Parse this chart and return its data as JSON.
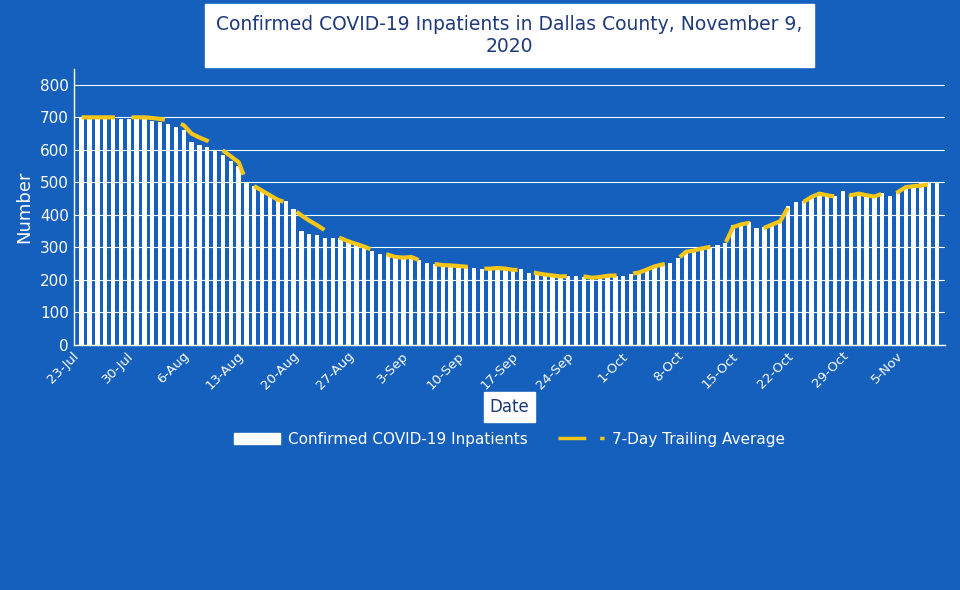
{
  "title": "Confirmed COVID-19 Inpatients in Dallas County, November 9,\n2020",
  "xlabel": "Date",
  "ylabel": "Number",
  "background_color": "#1560BD",
  "bar_color": "white",
  "line_color": "#F5C518",
  "title_color": "#1F3A7A",
  "ylim": [
    0,
    850
  ],
  "yticks": [
    0,
    100,
    200,
    300,
    400,
    500,
    600,
    700,
    800
  ],
  "bar_values": [
    700,
    695,
    700,
    695,
    700,
    695,
    695,
    700,
    695,
    690,
    685,
    680,
    670,
    660,
    625,
    615,
    610,
    595,
    585,
    565,
    550,
    500,
    488,
    475,
    462,
    448,
    442,
    418,
    350,
    342,
    338,
    328,
    328,
    328,
    318,
    308,
    298,
    288,
    278,
    275,
    268,
    268,
    272,
    262,
    252,
    248,
    242,
    242,
    242,
    238,
    236,
    232,
    232,
    238,
    232,
    228,
    232,
    222,
    218,
    212,
    212,
    208,
    212,
    212,
    208,
    202,
    208,
    212,
    212,
    212,
    218,
    222,
    232,
    242,
    248,
    252,
    268,
    288,
    292,
    298,
    302,
    308,
    312,
    368,
    372,
    378,
    358,
    362,
    372,
    382,
    428,
    438,
    442,
    458,
    468,
    462,
    458,
    472,
    462,
    468,
    462,
    458,
    468,
    458,
    472,
    488,
    492,
    498,
    502,
    502
  ],
  "avg_values": [
    700,
    700,
    700,
    700,
    700,
    700,
    700,
    700,
    700,
    698,
    695,
    692,
    686,
    676,
    650,
    638,
    628,
    612,
    598,
    580,
    562,
    500,
    488,
    474,
    460,
    446,
    438,
    416,
    398,
    382,
    368,
    352,
    338,
    328,
    318,
    310,
    302,
    292,
    282,
    277,
    270,
    268,
    270,
    260,
    252,
    248,
    245,
    244,
    242,
    240,
    237,
    234,
    234,
    236,
    234,
    230,
    231,
    226,
    220,
    216,
    213,
    210,
    211,
    212,
    210,
    206,
    208,
    212,
    213,
    213,
    218,
    222,
    231,
    241,
    247,
    251,
    265,
    286,
    290,
    296,
    301,
    306,
    311,
    362,
    370,
    375,
    356,
    360,
    370,
    380,
    422,
    436,
    440,
    455,
    465,
    460,
    456,
    470,
    460,
    465,
    460,
    456,
    465,
    456,
    470,
    485,
    488,
    490,
    494,
    496
  ],
  "xtick_labels": [
    "23-Jul",
    "30-Jul",
    "6-Aug",
    "13-Aug",
    "20-Aug",
    "27-Aug",
    "3-Sep",
    "10-Sep",
    "17-Sep",
    "24-Sep",
    "1-Oct",
    "8-Oct",
    "15-Oct",
    "22-Oct",
    "29-Oct",
    "5-Nov"
  ],
  "xtick_positions": [
    0,
    7,
    14,
    21,
    28,
    35,
    42,
    49,
    56,
    63,
    70,
    77,
    84,
    91,
    98,
    105
  ],
  "legend_bar_label": "Confirmed COVID-19 Inpatients",
  "legend_line_label": "7-Day Trailing Average"
}
